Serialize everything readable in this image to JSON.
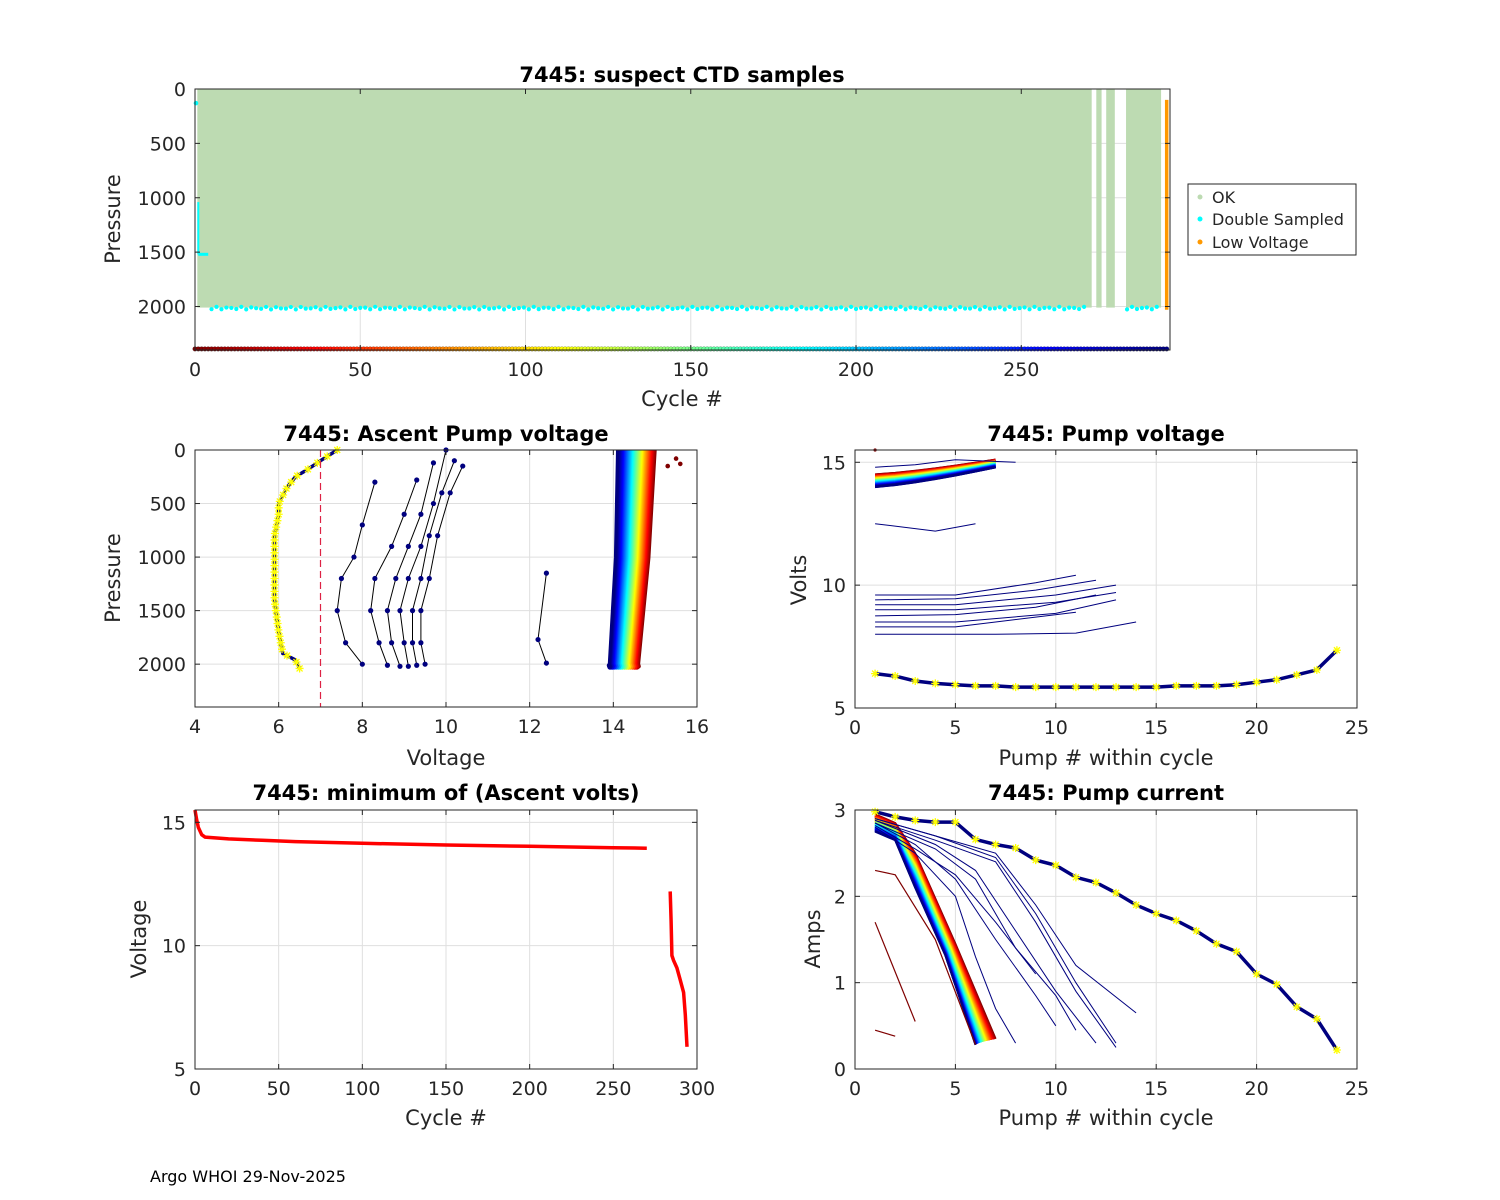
{
  "footer": "Argo WHOI 29-Nov-2025",
  "colors": {
    "ok": "#bddbb2",
    "double_sampled": "#00ffff",
    "low_voltage": "#ff9900",
    "min_volts_line": "#ff0000",
    "threshold_line": "#dd2244",
    "marker_yellow": "#ffff00",
    "dark_profile": "#00007f",
    "grid": "#dfdfdf",
    "axis": "#262626"
  },
  "chart_data": [
    {
      "id": "suspect",
      "type": "scatter",
      "title": "7445: suspect CTD samples",
      "xlabel": "Cycle #",
      "ylabel": "Pressure",
      "xlim": [
        0,
        295
      ],
      "ylim": [
        0,
        2400
      ],
      "y_reversed": true,
      "xticks": [
        0,
        50,
        100,
        150,
        200,
        250
      ],
      "yticks": [
        0,
        500,
        1000,
        1500,
        2000
      ],
      "legend": {
        "location": "right-outside",
        "entries": [
          "OK",
          "Double Sampled",
          "Low Voltage"
        ]
      },
      "ok_cycle_ranges": [
        [
          1,
          271
        ],
        [
          273,
          274
        ],
        [
          276,
          278
        ],
        [
          282,
          292
        ]
      ],
      "ok_pressure_range": [
        0,
        2010
      ],
      "double_sampled_bottom": {
        "cycles": [
          [
            5,
            270
          ],
          [
            282,
            292
          ]
        ],
        "pressure": 2015
      },
      "double_sampled_shallow": {
        "cycles": [
          1,
          4
        ],
        "pressure_range": [
          1040,
          1520
        ]
      },
      "low_voltage": {
        "cycle": 294,
        "pressure_range": [
          100,
          2030
        ]
      },
      "cycle_color_strip": {
        "pressure": 2390,
        "colormap": "jet-reversed"
      }
    },
    {
      "id": "ascent",
      "type": "line",
      "title": "7445: Ascent Pump voltage",
      "xlabel": "Voltage",
      "ylabel": "Pressure",
      "xlim": [
        4,
        16
      ],
      "ylim": [
        0,
        2400
      ],
      "y_reversed": true,
      "xticks": [
        4,
        6,
        8,
        10,
        12,
        14,
        16
      ],
      "yticks": [
        0,
        500,
        1000,
        1500,
        2000
      ],
      "threshold_voltage": 7,
      "last_profile": {
        "voltage": [
          6.5,
          6.4,
          6.1,
          6.0,
          5.9,
          5.9,
          5.9,
          5.9,
          6.0,
          6.0,
          6.2,
          6.4,
          6.7,
          7.0,
          7.4
        ],
        "pressure": [
          2040,
          1960,
          1900,
          1700,
          1400,
          1200,
          1000,
          800,
          600,
          500,
          350,
          250,
          180,
          100,
          0
        ]
      },
      "dark_profiles": [
        {
          "voltage": [
            8.0,
            7.6,
            7.4,
            7.5,
            7.8,
            8.0,
            8.3
          ],
          "pressure": [
            2000,
            1800,
            1500,
            1200,
            1000,
            700,
            300
          ]
        },
        {
          "voltage": [
            8.6,
            8.4,
            8.2,
            8.3,
            8.7,
            9.0,
            9.3
          ],
          "pressure": [
            2010,
            1800,
            1500,
            1200,
            900,
            600,
            280
          ]
        },
        {
          "voltage": [
            8.9,
            8.7,
            8.6,
            8.8,
            9.1,
            9.4,
            9.7
          ],
          "pressure": [
            2020,
            1800,
            1500,
            1200,
            900,
            600,
            120
          ]
        },
        {
          "voltage": [
            9.1,
            9.0,
            8.9,
            9.1,
            9.4,
            9.7,
            10.0
          ],
          "pressure": [
            2020,
            1800,
            1500,
            1200,
            900,
            500,
            0
          ]
        },
        {
          "voltage": [
            9.3,
            9.2,
            9.2,
            9.4,
            9.6,
            9.9,
            10.2
          ],
          "pressure": [
            2010,
            1800,
            1500,
            1200,
            800,
            400,
            100
          ]
        },
        {
          "voltage": [
            9.5,
            9.4,
            9.4,
            9.6,
            9.8,
            10.1,
            10.4
          ],
          "pressure": [
            2000,
            1800,
            1500,
            1200,
            800,
            400,
            150
          ]
        },
        {
          "voltage": [
            12.4,
            12.2,
            12.4
          ],
          "pressure": [
            1990,
            1770,
            1150
          ]
        }
      ],
      "main_band": {
        "cycles_count": 270,
        "start_voltage_range": [
          15.0,
          14.1
        ],
        "end_voltage_range": [
          14.6,
          13.9
        ],
        "pressure_range": [
          2020,
          0
        ],
        "colormap": "jet-reversed"
      },
      "outlier_points": {
        "voltage": [
          15.5,
          15.6,
          15.3
        ],
        "pressure": [
          80,
          130,
          150
        ]
      }
    },
    {
      "id": "pumpv",
      "type": "line",
      "title": "7445: Pump voltage",
      "xlabel": "Pump # within cycle",
      "ylabel": "Volts",
      "xlim": [
        0,
        25
      ],
      "ylim": [
        5,
        15.5
      ],
      "xticks": [
        0,
        5,
        10,
        15,
        20,
        25
      ],
      "yticks": [
        5,
        10,
        15
      ],
      "last_cycle": {
        "pump": [
          1,
          2,
          3,
          4,
          5,
          6,
          7,
          8,
          9,
          10,
          11,
          12,
          13,
          14,
          15,
          16,
          17,
          18,
          19,
          20,
          21,
          22,
          23,
          24
        ],
        "volts": [
          6.4,
          6.3,
          6.1,
          6.0,
          5.95,
          5.9,
          5.9,
          5.85,
          5.85,
          5.85,
          5.85,
          5.85,
          5.85,
          5.85,
          5.85,
          5.9,
          5.9,
          5.9,
          5.95,
          6.05,
          6.15,
          6.35,
          6.55,
          7.35
        ]
      },
      "dark_series": [
        {
          "pump": [
            1,
            5,
            9,
            11
          ],
          "volts": [
            9.6,
            9.6,
            10.1,
            10.4
          ]
        },
        {
          "pump": [
            1,
            5,
            9,
            12
          ],
          "volts": [
            9.4,
            9.45,
            9.8,
            10.2
          ]
        },
        {
          "pump": [
            1,
            5,
            10,
            13
          ],
          "volts": [
            9.2,
            9.2,
            9.6,
            10.0
          ]
        },
        {
          "pump": [
            1,
            5,
            10,
            13
          ],
          "volts": [
            9.0,
            9.0,
            9.3,
            9.7
          ]
        },
        {
          "pump": [
            1,
            5,
            9,
            12
          ],
          "volts": [
            8.75,
            8.8,
            9.1,
            9.6
          ]
        },
        {
          "pump": [
            1,
            5,
            10,
            13
          ],
          "volts": [
            8.5,
            8.5,
            8.85,
            9.4
          ]
        },
        {
          "pump": [
            1,
            5,
            7,
            11
          ],
          "volts": [
            8.3,
            8.3,
            8.5,
            8.9
          ]
        },
        {
          "pump": [
            1,
            7,
            11,
            14
          ],
          "volts": [
            8.0,
            8.0,
            8.05,
            8.5
          ]
        },
        {
          "pump": [
            1,
            4,
            6
          ],
          "volts": [
            12.5,
            12.2,
            12.5
          ]
        },
        {
          "pump": [
            1,
            3,
            5,
            8
          ],
          "volts": [
            14.8,
            14.9,
            15.1,
            15.0
          ]
        }
      ],
      "main_band": {
        "pumps": [
          1,
          7
        ],
        "start_volts_range": [
          14.5,
          14.0
        ],
        "end_volts_range": [
          15.1,
          14.8
        ],
        "colormap": "jet-reversed"
      }
    },
    {
      "id": "minv",
      "type": "line",
      "title": "7445: minimum of (Ascent volts)",
      "xlabel": "Cycle #",
      "ylabel": "Voltage",
      "xlim": [
        0,
        300
      ],
      "ylim": [
        5,
        15.5
      ],
      "xticks": [
        0,
        50,
        100,
        150,
        200,
        250,
        300
      ],
      "yticks": [
        5,
        10,
        15
      ],
      "segments": [
        {
          "cycle": [
            0,
            1,
            2,
            4,
            6,
            10,
            20,
            40,
            60,
            100,
            150,
            200,
            250,
            270
          ],
          "volts": [
            15.5,
            15.1,
            14.8,
            14.5,
            14.4,
            14.38,
            14.33,
            14.27,
            14.22,
            14.15,
            14.08,
            14.03,
            13.97,
            13.95
          ]
        },
        {
          "cycle": [
            284,
            284.5,
            285,
            286,
            288,
            290,
            292,
            293,
            294
          ],
          "volts": [
            12.2,
            11.0,
            9.6,
            9.4,
            9.1,
            8.6,
            8.1,
            7.2,
            5.9
          ]
        }
      ]
    },
    {
      "id": "pumpc",
      "type": "line",
      "title": "7445: Pump current",
      "xlabel": "Pump # within cycle",
      "ylabel": "Amps",
      "xlim": [
        0,
        25
      ],
      "ylim": [
        0,
        3
      ],
      "xticks": [
        0,
        5,
        10,
        15,
        20,
        25
      ],
      "yticks": [
        0,
        1,
        2,
        3
      ],
      "last_cycle": {
        "pump": [
          1,
          2,
          3,
          4,
          5,
          6,
          7,
          8,
          9,
          10,
          11,
          12,
          13,
          14,
          15,
          16,
          17,
          18,
          19,
          20,
          21,
          22,
          23,
          24
        ],
        "amps": [
          2.98,
          2.92,
          2.88,
          2.86,
          2.86,
          2.66,
          2.6,
          2.56,
          2.42,
          2.36,
          2.22,
          2.16,
          2.04,
          1.9,
          1.8,
          1.72,
          1.6,
          1.45,
          1.36,
          1.1,
          0.98,
          0.72,
          0.58,
          0.22
        ]
      },
      "dark_series": [
        {
          "pump": [
            1,
            4,
            7,
            9,
            11,
            14
          ],
          "amps": [
            2.9,
            2.7,
            2.5,
            1.9,
            1.2,
            0.65
          ]
        },
        {
          "pump": [
            1,
            4,
            7,
            9,
            11,
            13
          ],
          "amps": [
            2.9,
            2.7,
            2.45,
            1.8,
            1.0,
            0.3
          ]
        },
        {
          "pump": [
            1,
            4,
            7,
            9,
            11,
            13
          ],
          "amps": [
            2.88,
            2.65,
            2.4,
            1.7,
            0.9,
            0.25
          ]
        },
        {
          "pump": [
            1,
            4,
            6,
            8,
            10,
            12
          ],
          "amps": [
            2.88,
            2.6,
            2.3,
            1.6,
            0.9,
            0.3
          ]
        },
        {
          "pump": [
            1,
            4,
            6,
            8,
            10,
            11
          ],
          "amps": [
            2.85,
            2.55,
            2.2,
            1.4,
            0.85,
            0.45
          ]
        },
        {
          "pump": [
            1,
            3,
            5,
            7,
            9,
            10
          ],
          "amps": [
            2.85,
            2.6,
            2.2,
            1.5,
            0.85,
            0.5
          ]
        },
        {
          "pump": [
            1,
            3,
            5,
            6,
            7,
            8
          ],
          "amps": [
            2.8,
            2.5,
            2.0,
            1.3,
            0.7,
            0.3
          ]
        },
        {
          "pump": [
            1,
            3,
            5,
            7,
            9
          ],
          "amps": [
            2.82,
            2.55,
            2.25,
            1.7,
            1.1
          ]
        }
      ],
      "main_band": {
        "pumps": [
          1,
          7
        ],
        "start_amps_range": [
          2.95,
          2.75
        ],
        "end_amps_range": [
          0.28,
          0.35
        ],
        "colormap": "jet-reversed"
      },
      "dark_red_series": [
        {
          "pump": [
            1,
            2,
            4,
            6
          ],
          "amps": [
            2.3,
            2.25,
            1.5,
            0.28
          ]
        },
        {
          "pump": [
            1,
            3
          ],
          "amps": [
            1.7,
            0.55
          ]
        },
        {
          "pump": [
            1,
            2
          ],
          "amps": [
            0.45,
            0.38
          ]
        }
      ]
    }
  ]
}
